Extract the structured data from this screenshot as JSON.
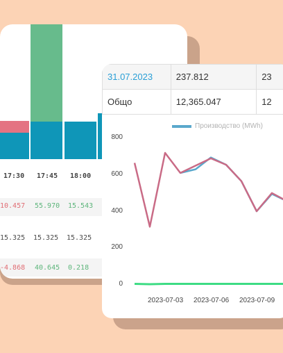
{
  "back_card": {
    "times": [
      "17:30",
      "17:45",
      "18:00"
    ],
    "rows": [
      {
        "values": [
          "10.457",
          "55.970",
          "15.543"
        ],
        "styles": [
          "red",
          "green",
          "green"
        ]
      },
      {
        "values": [
          "15.325",
          "15.325",
          "15.325"
        ],
        "styles": [
          "gray",
          "gray",
          "gray"
        ]
      },
      {
        "values": [
          "-4.868",
          "40.645",
          "0.218"
        ],
        "styles": [
          "red",
          "green",
          "green"
        ]
      }
    ],
    "colors": {
      "red": "#e47382",
      "teal": "#0f96b8",
      "green": "#67bb8c"
    }
  },
  "table": {
    "row1": {
      "date": "31.07.2023",
      "value": "237.812",
      "partial": "23"
    },
    "row2": {
      "label": "Общо",
      "value": "12,365.047",
      "partial": "12"
    }
  },
  "chart_data": {
    "type": "line",
    "legend": [
      "Производство (MWh)"
    ],
    "ylim": [
      0,
      800
    ],
    "yticks": [
      0,
      200,
      400,
      600,
      800
    ],
    "xticks": [
      "2023-07-03",
      "2023-07-06",
      "2023-07-09"
    ],
    "x": [
      "2023-07-01",
      "2023-07-02",
      "2023-07-03",
      "2023-07-04",
      "2023-07-05",
      "2023-07-06",
      "2023-07-07",
      "2023-07-08",
      "2023-07-09",
      "2023-07-10",
      "2023-07-11"
    ],
    "series": [
      {
        "name": "Производство (MWh)",
        "color": "#5aa8cc",
        "values": [
          null,
          null,
          null,
          610,
          630,
          695,
          655,
          565,
          400,
          495,
          455
        ]
      },
      {
        "color": "#c96b86",
        "values": [
          665,
          315,
          720,
          610,
          650,
          690,
          655,
          565,
          400,
          500,
          455
        ]
      },
      {
        "color": "#3ddc84",
        "values": [
          2,
          0,
          2,
          2,
          2,
          2,
          2,
          2,
          2,
          2,
          2
        ]
      }
    ],
    "grid": false
  }
}
